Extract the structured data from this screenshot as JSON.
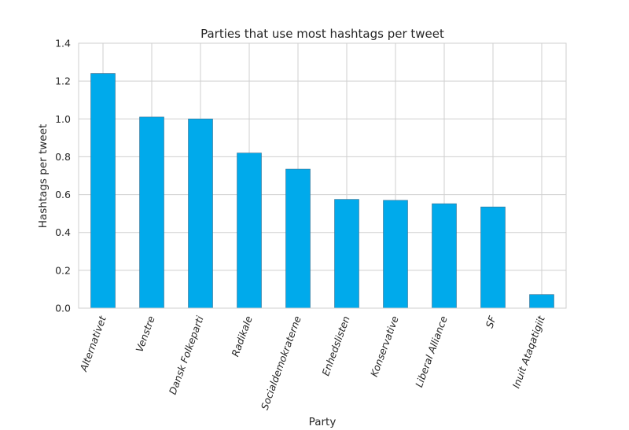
{
  "chart_data": {
    "type": "bar",
    "title": "Parties that use most hashtags per tweet",
    "xlabel": "Party",
    "ylabel": "Hashtags per tweet",
    "categories": [
      "Alternativet",
      "Venstre",
      "Dansk Folkeparti",
      "Radikale",
      "Socialdemokraterne",
      "Enhedslisten",
      "Konservative",
      "Liberal Alliance",
      "SF",
      "Inuit Ataqatigiit"
    ],
    "values": [
      1.24,
      1.01,
      1.0,
      0.82,
      0.735,
      0.575,
      0.57,
      0.552,
      0.535,
      0.072
    ],
    "yticks": [
      "0.0",
      "0.2",
      "0.4",
      "0.6",
      "0.8",
      "1.0",
      "1.2",
      "1.4"
    ],
    "ylim": [
      0,
      1.4
    ],
    "grid": true,
    "bar_color": "#00aaeb"
  }
}
